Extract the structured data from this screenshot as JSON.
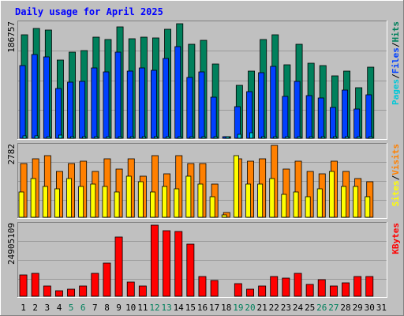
{
  "chart_data": {
    "type": "bar",
    "title": "Daily usage for April 2025",
    "categories": [
      "1",
      "2",
      "3",
      "4",
      "5",
      "6",
      "7",
      "8",
      "9",
      "10",
      "11",
      "12",
      "13",
      "14",
      "15",
      "16",
      "17",
      "18",
      "19",
      "20",
      "21",
      "22",
      "23",
      "24",
      "25",
      "26",
      "27",
      "28",
      "29",
      "30",
      "31"
    ],
    "weekend_days": [
      "5",
      "6",
      "12",
      "13",
      "19",
      "20",
      "26",
      "27"
    ],
    "panels": [
      {
        "id": "hits-files-pages",
        "max_label": "186757",
        "ymax": 186757,
        "legend": [
          "Pages",
          "/",
          "Files",
          "/",
          "Hits"
        ],
        "series": [
          {
            "name": "Hits",
            "color": "#00805c",
            "values": [
              169000,
              179000,
              177000,
              128000,
              141000,
              143000,
              165000,
              161000,
              181000,
              162000,
              165000,
              164000,
              178000,
              186757,
              153000,
              160000,
              121000,
              1500,
              86000,
              110000,
              161000,
              169000,
              120000,
              153000,
              122000,
              119000,
              102000,
              109000,
              82000,
              116000,
              0
            ]
          },
          {
            "name": "Files",
            "color": "#0040ff",
            "values": [
              119000,
              137000,
              133000,
              81000,
              91000,
              93000,
              114000,
              108000,
              140000,
              109000,
              114000,
              111000,
              130000,
              150000,
              99000,
              108000,
              67000,
              1000,
              52000,
              76000,
              107000,
              117000,
              68000,
              93000,
              70000,
              66000,
              50000,
              78000,
              48000,
              71000,
              0
            ]
          },
          {
            "name": "Pages",
            "color": "#00c8d8",
            "values": [
              4000,
              4000,
              3000,
              5000,
              3000,
              3000,
              2500,
              3000,
              3000,
              3000,
              3000,
              3000,
              3000,
              3000,
              3000,
              3000,
              2000,
              1000,
              7000,
              9000,
              3000,
              3000,
              3000,
              3000,
              3000,
              3000,
              3000,
              3000,
              3000,
              3000,
              0
            ]
          }
        ]
      },
      {
        "id": "visits-sites",
        "max_label": "2782",
        "ymax": 2782,
        "legend": [
          "Sites",
          "/",
          "Visits"
        ],
        "series": [
          {
            "name": "Visits",
            "color": "#ff8000",
            "values": [
              2100,
              2300,
              2400,
              1800,
              2100,
              2200,
              1800,
              2300,
              1900,
              2300,
              1600,
              2400,
              1700,
              2400,
              2100,
              2100,
              1300,
              200,
              2300,
              2200,
              2300,
              2800,
              1900,
              2200,
              1800,
              1700,
              2200,
              1800,
              1500,
              1400,
              0
            ]
          },
          {
            "name": "Sites",
            "color": "#ffff00",
            "values": [
              1000,
              1500,
              1200,
              1100,
              1500,
              1200,
              1300,
              1200,
              1000,
              1600,
              1400,
              1000,
              1200,
              1100,
              1600,
              1300,
              800,
              100,
              2400,
              1300,
              1300,
              1500,
              900,
              1000,
              800,
              1100,
              1800,
              1200,
              1200,
              800,
              0
            ]
          }
        ]
      },
      {
        "id": "kbytes",
        "max_label": "24905109",
        "ymax": 24905109,
        "legend": [
          "KBytes"
        ],
        "series": [
          {
            "name": "KBytes",
            "color": "#ff0000",
            "values": [
              7500000,
              8000000,
              3700000,
              2000000,
              2400000,
              3700000,
              8000000,
              11500000,
              20800000,
              5000000,
              3700000,
              24905109,
              23000000,
              22700000,
              18200000,
              7000000,
              5500000,
              0,
              4500000,
              2400000,
              3700000,
              6800000,
              6300000,
              8000000,
              4200000,
              5700000,
              3700000,
              4700000,
              7000000,
              6800000,
              0
            ]
          }
        ]
      }
    ]
  }
}
